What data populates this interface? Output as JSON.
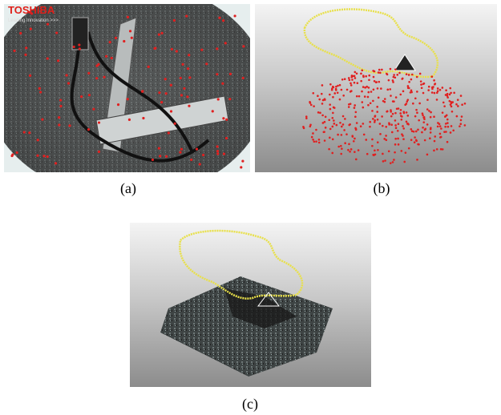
{
  "panels": [
    {
      "label": "(a)",
      "logo": "TOSHIBA",
      "logo_tagline": "Leading Innovation >>>"
    },
    {
      "label": "(b)"
    },
    {
      "label": "(c)"
    }
  ]
}
